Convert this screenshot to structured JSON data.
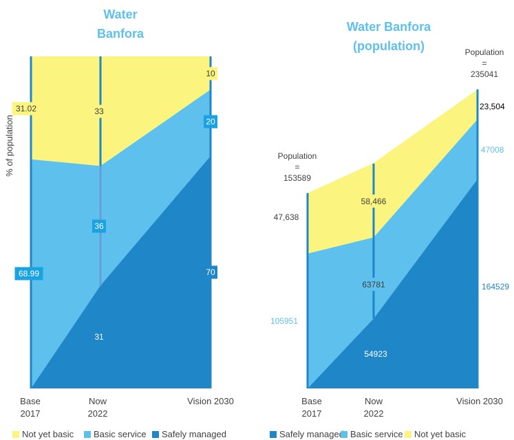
{
  "colors": {
    "safely": "#1f86c8",
    "basic": "#5ec0ec",
    "notyet": "#fbf47e",
    "title": "#5ec0ec",
    "label_box_blue": "#1aa3e0",
    "label_box_dark": "#1f86c8",
    "label_box_yellow": "#fbf47e",
    "bar": "#1f86c8",
    "bar_mid": "#6a9bd8",
    "text": "#404040"
  },
  "chart_data": [
    {
      "type": "area",
      "stacked": true,
      "title": "Water Banfora",
      "ylabel": "% of population",
      "categories": [
        "Base 2017",
        "Now 2022",
        "Vision 2030"
      ],
      "category_lines": [
        [
          "Base",
          "2017"
        ],
        [
          "Now",
          "2022"
        ],
        [
          "Vision 2030"
        ]
      ],
      "ylim": [
        0,
        100
      ],
      "series": [
        {
          "name": "Safely managed",
          "values": [
            0,
            31,
            70
          ],
          "color_key": "safely"
        },
        {
          "name": "Basic service",
          "values": [
            68.99,
            36,
            20
          ],
          "color_key": "basic"
        },
        {
          "name": "Not yet basic",
          "values": [
            31.02,
            33,
            10
          ],
          "color_key": "notyet"
        }
      ],
      "data_labels": {
        "notyet": [
          "31.02",
          "33",
          "10"
        ],
        "basic": [
          "68.99",
          "36",
          "20"
        ],
        "safely": [
          "",
          "31",
          "70"
        ]
      },
      "legend": [
        "Not yet basic",
        "Basic service",
        "Safely managed"
      ],
      "legend_position": "bottom"
    },
    {
      "type": "area",
      "stacked": true,
      "title": "Water Banfora (population)",
      "categories": [
        "Base 2017",
        "Now 2022",
        "Vision 2030"
      ],
      "category_lines": [
        [
          "Base",
          "2017"
        ],
        [
          "Now",
          "2022"
        ],
        [
          "Vision 2030"
        ]
      ],
      "series": [
        {
          "name": "Safely managed",
          "values": [
            0,
            54923,
            164529
          ],
          "color_key": "safely"
        },
        {
          "name": "Basic service",
          "values": [
            105951,
            63781,
            47008
          ],
          "color_key": "basic"
        },
        {
          "name": "Not yet basic",
          "values": [
            47638,
            58466,
            23504
          ],
          "color_key": "notyet"
        }
      ],
      "data_labels": {
        "safely": [
          "",
          "54923",
          "164529"
        ],
        "basic": [
          "105951",
          "63781",
          "47008"
        ],
        "notyet": [
          "47,638",
          "58,466",
          "23,504"
        ]
      },
      "totals": [
        153589,
        null,
        235041
      ],
      "total_labels": [
        [
          "Population",
          "=",
          "153589"
        ],
        null,
        [
          "Population",
          "=",
          "235041"
        ]
      ],
      "legend": [
        "Safely managed",
        "Basic service",
        "Not yet basic"
      ],
      "legend_position": "bottom"
    }
  ]
}
